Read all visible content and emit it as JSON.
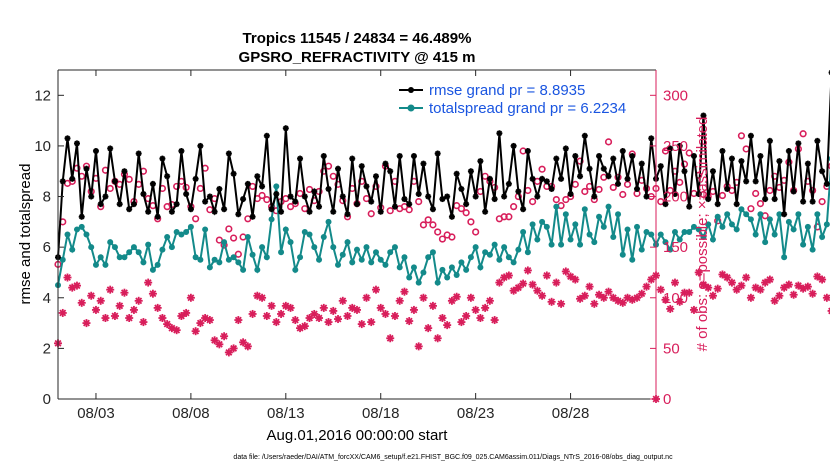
{
  "chart_data": {
    "type": "line",
    "title": "Tropics 11545 / 24834 = 46.489%",
    "subtitle": "GPSRO_REFRACTIVITY @ 415 m",
    "xlabel": "Aug.01,2016 00:00:00 start",
    "ylabel_left": "rmse and totalspread",
    "ylabel_right": "# of obs: o=possible; ×=assimilated",
    "footnote": "data file: /Users/raeder/DAI/ATM_forcXX/CAM6_setup/f.e21.FHIST_BGC.f09_025.CAM6assim.011/Diags_NTrS_2016-08/obs_diag_output.nc",
    "xlim": [
      0,
      31.5
    ],
    "ylim_left": [
      0,
      13
    ],
    "ylim_right": [
      0,
      325
    ],
    "x_ticks": [
      2,
      7,
      12,
      17,
      22,
      27
    ],
    "x_tick_labels": [
      "08/03",
      "08/08",
      "08/13",
      "08/18",
      "08/23",
      "08/28"
    ],
    "y_ticks_left": [
      0,
      2,
      4,
      6,
      8,
      10,
      12
    ],
    "y_ticks_right": [
      0,
      50,
      100,
      150,
      200,
      250,
      300
    ],
    "grid": false,
    "legend_position": "top-right",
    "colors": {
      "rmse": "#000000",
      "totalspread": "#138a8a",
      "obs": "#d81e5b",
      "legend_text": "#1a55e0"
    },
    "x_step_days": 0.25,
    "series": [
      {
        "name": "rmse grand pr = 8.8935",
        "axis": "left",
        "marker": "asterisk",
        "values": [
          5.6,
          8.6,
          10.3,
          8.7,
          10.1,
          7.2,
          9.1,
          8.0,
          9.8,
          7.7,
          8.0,
          9.9,
          8.6,
          7.7,
          9.0,
          7.5,
          7.7,
          9.7,
          8.1,
          7.4,
          8.5,
          7.2,
          9.5,
          8.8,
          7.4,
          7.7,
          9.8,
          8.1,
          7.5,
          8.7,
          10.0,
          7.8,
          8.0,
          7.4,
          8.3,
          7.5,
          9.7,
          8.9,
          7.3,
          7.9,
          8.5,
          7.2,
          8.8,
          8.4,
          10.4,
          7.5,
          8.1,
          7.4,
          10.7,
          8.0,
          7.8,
          9.5,
          8.0,
          7.4,
          8.2,
          7.6,
          9.6,
          8.3,
          7.4,
          9.1,
          8.0,
          7.3,
          9.5,
          7.7,
          9.2,
          8.4,
          7.8,
          8.8,
          7.4,
          9.3,
          9.0,
          7.6,
          9.6,
          7.9,
          7.7,
          9.6,
          8.1,
          9.3,
          8.0,
          7.5,
          9.7,
          7.9,
          8.0,
          7.2,
          8.9,
          8.3,
          7.7,
          9.0,
          8.0,
          9.4,
          7.4,
          8.7,
          7.9,
          10.5,
          8.0,
          8.5,
          10.0,
          8.2,
          7.5,
          9.8,
          8.7,
          8.0,
          8.7,
          8.6,
          8.3,
          9.5,
          8.7,
          9.9,
          8.1,
          9.6,
          8.8,
          10.4,
          9.1,
          8.0,
          9.6,
          9.1,
          8.8,
          9.5,
          8.5,
          9.8,
          8.7,
          9.6,
          8.3,
          9.3,
          8.0,
          10.3,
          8.7,
          9.2,
          7.7,
          9.9,
          8.1,
          10.0,
          9.0,
          7.6,
          9.6,
          8.1,
          11.2,
          7.9,
          9.0,
          7.7,
          9.8,
          8.3,
          9.5,
          7.7,
          9.4,
          8.6,
          10.4,
          8.6,
          9.6,
          7.9,
          10.2,
          7.9,
          9.4,
          7.3,
          9.8,
          8.2,
          10.1,
          7.8,
          9.3,
          7.8,
          10.2,
          9.0,
          8.5,
          12.9,
          7.3,
          10.7,
          8.8
        ]
      },
      {
        "name": "totalspread grand pr = 6.2234",
        "axis": "left",
        "marker": "dot",
        "values": [
          4.5,
          5.5,
          6.5,
          5.9,
          6.7,
          6.8,
          6.5,
          6.0,
          5.3,
          5.6,
          5.3,
          6.2,
          6.0,
          5.6,
          5.6,
          5.8,
          6.0,
          5.8,
          5.4,
          6.1,
          5.1,
          5.3,
          5.9,
          6.4,
          6.0,
          6.6,
          6.5,
          6.6,
          6.8,
          5.6,
          5.5,
          6.7,
          5.2,
          5.5,
          5.4,
          6.2,
          5.5,
          5.6,
          5.4,
          5.1,
          6.4,
          5.7,
          5.1,
          6.0,
          5.6,
          7.1,
          8.4,
          5.8,
          6.7,
          6.2,
          5.1,
          5.6,
          6.6,
          6.5,
          6.0,
          5.5,
          6.4,
          7.0,
          6.0,
          5.3,
          5.7,
          6.2,
          5.4,
          5.9,
          5.5,
          6.0,
          5.4,
          5.8,
          5.5,
          5.3,
          5.8,
          6.0,
          5.2,
          5.6,
          4.8,
          5.2,
          4.6,
          5.0,
          5.6,
          5.8,
          4.6,
          5.1,
          4.8,
          5.2,
          4.9,
          5.4,
          5.1,
          5.6,
          6.0,
          5.2,
          5.8,
          5.7,
          6.1,
          5.5,
          6.0,
          5.6,
          5.4,
          5.9,
          6.6,
          5.8,
          6.9,
          6.3,
          7.0,
          6.8,
          6.1,
          7.6,
          6.1,
          7.3,
          6.3,
          6.9,
          6.1,
          7.5,
          6.5,
          6.2,
          7.2,
          6.8,
          7.6,
          6.4,
          7.3,
          5.7,
          6.7,
          5.5,
          6.8,
          5.9,
          6.6,
          6.5,
          6.1,
          6.5,
          6.2,
          5.9,
          6.6,
          6.3,
          6.6,
          6.6,
          6.8,
          6.7,
          6.4,
          6.9,
          6.3,
          7.2,
          6.8,
          7.3,
          6.9,
          6.7,
          7.5,
          7.3,
          7.1,
          6.5,
          7.3,
          6.2,
          7.1,
          6.5,
          7.3,
          5.6,
          7.0,
          6.7,
          7.3,
          6.1,
          6.8,
          5.9,
          7.3,
          6.4,
          6.9,
          9.5,
          6.1,
          7.6,
          5.8
        ]
      },
      {
        "name": "possible",
        "axis": "right",
        "marker": "circle",
        "values": [
          133,
          175,
          213,
          215,
          228,
          220,
          230,
          205,
          218,
          190,
          226,
          208,
          215,
          212,
          222,
          217,
          195,
          212,
          225,
          198,
          191,
          178,
          208,
          190,
          192,
          210,
          215,
          209,
          190,
          178,
          208,
          228,
          187,
          198,
          157,
          152,
          168,
          159,
          143,
          160,
          178,
          210,
          198,
          201,
          197,
          190,
          186,
          195,
          198,
          190,
          193,
          203,
          188,
          207,
          196,
          205,
          225,
          230,
          220,
          212,
          196,
          180,
          208,
          193,
          215,
          198,
          183,
          210,
          189,
          230,
          186,
          215,
          188,
          190,
          187,
          215,
          195,
          172,
          177,
          172,
          165,
          158,
          162,
          160,
          191,
          188,
          184,
          175,
          165,
          205,
          220,
          215,
          209,
          178,
          180,
          180,
          190,
          200,
          245,
          206,
          195,
          215,
          227,
          210,
          210,
          197,
          191,
          197,
          200,
          212,
          235,
          205,
          210,
          197,
          207,
          219,
          254,
          209,
          219,
          202,
          212,
          242,
          203,
          216,
          208,
          200,
          208,
          195,
          245,
          206,
          225,
          214,
          232,
          243,
          203,
          221,
          202,
          200,
          205,
          176,
          201,
          210,
          206,
          214,
          260,
          247,
          188,
          203,
          193,
          181,
          206,
          220,
          209,
          216,
          234,
          206,
          247,
          262,
          215,
          206,
          170,
          195,
          210,
          230,
          202,
          190,
          236,
          215,
          183,
          160,
          140
        ]
      },
      {
        "name": "assimilated",
        "axis": "right",
        "marker": "asterisk",
        "values": [
          55,
          85,
          120,
          110,
          112,
          95,
          75,
          102,
          88,
          97,
          80,
          108,
          82,
          92,
          105,
          80,
          88,
          97,
          76,
          115,
          104,
          90,
          80,
          74,
          70,
          68,
          82,
          85,
          100,
          67,
          75,
          80,
          78,
          58,
          54,
          62,
          46,
          50,
          78,
          56,
          52,
          84,
          102,
          100,
          82,
          92,
          76,
          84,
          92,
          90,
          78,
          70,
          72,
          80,
          84,
          80,
          90,
          76,
          87,
          79,
          97,
          82,
          90,
          88,
          74,
          100,
          76,
          108,
          90,
          84,
          60,
          82,
          97,
          106,
          77,
          88,
          52,
          100,
          70,
          92,
          60,
          80,
          73,
          97,
          101,
          76,
          82,
          100,
          88,
          80,
          90,
          97,
          78,
          115,
          120,
          122,
          107,
          110,
          114,
          127,
          113,
          107,
          102,
          122,
          96,
          115,
          94,
          126,
          121,
          118,
          99,
          102,
          111,
          94,
          103,
          100,
          106,
          100,
          97,
          95,
          100,
          98,
          100,
          104,
          111,
          118,
          122,
          108,
          98,
          89,
          115,
          96,
          105,
          105,
          88,
          125,
          113,
          110,
          102,
          109,
          123,
          120,
          115,
          108,
          112,
          120,
          100,
          110,
          108,
          115,
          118,
          97,
          102,
          110,
          113,
          103,
          112,
          109,
          111,
          104,
          121,
          118,
          100,
          87,
          84,
          89,
          70,
          65,
          57,
          68,
          70
        ]
      }
    ]
  }
}
